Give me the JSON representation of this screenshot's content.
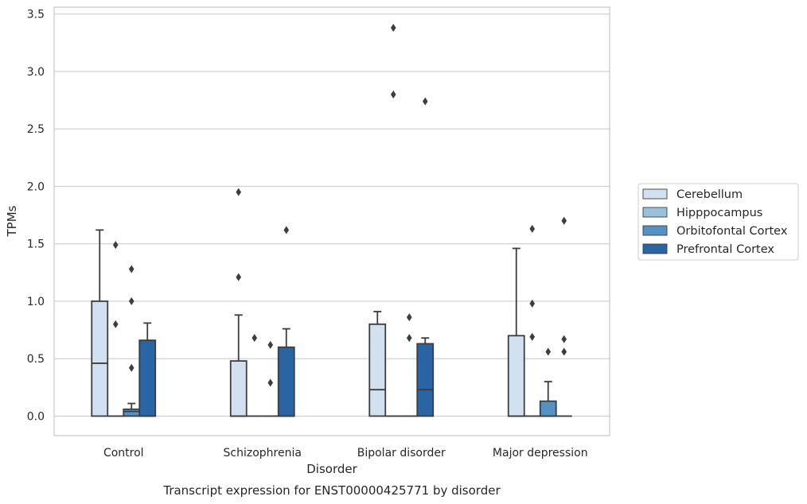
{
  "chart_data": {
    "type": "box",
    "caption": "Transcript expression for ENST00000425771 by disorder",
    "xlabel": "Disorder",
    "ylabel": "TPMs",
    "ylim": [
      -0.17,
      3.56
    ],
    "yticks": [
      "0.0",
      "0.5",
      "1.0",
      "1.5",
      "2.0",
      "2.5",
      "3.0",
      "3.5"
    ],
    "grid": "horizontal",
    "legend_position": "right",
    "categories": [
      "Control",
      "Schizophrenia",
      "Bipolar disorder",
      "Major depression"
    ],
    "series": [
      {
        "name": "Cerebellum",
        "color": "#d2e1f0",
        "boxes": [
          {
            "q1": 0.0,
            "median": 0.46,
            "q3": 1.0,
            "whisker_low": 0.0,
            "whisker_high": 1.62,
            "outliers": []
          },
          {
            "q1": 0.0,
            "median": 0.0,
            "q3": 0.48,
            "whisker_low": 0.0,
            "whisker_high": 0.88,
            "outliers": [
              1.21,
              1.95
            ]
          },
          {
            "q1": 0.0,
            "median": 0.23,
            "q3": 0.8,
            "whisker_low": 0.0,
            "whisker_high": 0.91,
            "outliers": []
          },
          {
            "q1": 0.0,
            "median": 0.0,
            "q3": 0.7,
            "whisker_low": 0.0,
            "whisker_high": 1.46,
            "outliers": []
          }
        ]
      },
      {
        "name": "Hipppocampus",
        "color": "#9ac1dc",
        "boxes": [
          {
            "q1": 0.0,
            "median": 0.0,
            "q3": 0.0,
            "whisker_low": 0.0,
            "whisker_high": 0.0,
            "outliers": [
              0.8,
              1.49
            ]
          },
          {
            "q1": 0.0,
            "median": 0.0,
            "q3": 0.0,
            "whisker_low": 0.0,
            "whisker_high": 0.0,
            "outliers": [
              0.68
            ]
          },
          {
            "q1": 0.0,
            "median": 0.0,
            "q3": 0.0,
            "whisker_low": 0.0,
            "whisker_high": 0.0,
            "outliers": [
              2.8,
              3.38
            ]
          },
          {
            "q1": 0.0,
            "median": 0.0,
            "q3": 0.0,
            "whisker_low": 0.0,
            "whisker_high": 0.0,
            "outliers": [
              0.69,
              0.98,
              1.63
            ]
          }
        ]
      },
      {
        "name": "Orbitofontal Cortex",
        "color": "#5592c1",
        "boxes": [
          {
            "q1": 0.0,
            "median": 0.04,
            "q3": 0.06,
            "whisker_low": 0.0,
            "whisker_high": 0.11,
            "outliers": [
              0.42,
              1.0,
              1.28
            ]
          },
          {
            "q1": 0.0,
            "median": 0.0,
            "q3": 0.0,
            "whisker_low": 0.0,
            "whisker_high": 0.0,
            "outliers": [
              0.29,
              0.62
            ]
          },
          {
            "q1": 0.0,
            "median": 0.0,
            "q3": 0.0,
            "whisker_low": 0.0,
            "whisker_high": 0.0,
            "outliers": [
              0.68,
              0.86
            ]
          },
          {
            "q1": 0.0,
            "median": 0.0,
            "q3": 0.13,
            "whisker_low": 0.0,
            "whisker_high": 0.3,
            "outliers": [
              0.56
            ]
          }
        ]
      },
      {
        "name": "Prefrontal Cortex",
        "color": "#2a64a2",
        "boxes": [
          {
            "q1": 0.0,
            "median": 0.0,
            "q3": 0.66,
            "whisker_low": 0.0,
            "whisker_high": 0.81,
            "outliers": []
          },
          {
            "q1": 0.0,
            "median": 0.0,
            "q3": 0.6,
            "whisker_low": 0.0,
            "whisker_high": 0.76,
            "outliers": [
              1.62
            ]
          },
          {
            "q1": 0.0,
            "median": 0.23,
            "q3": 0.63,
            "whisker_low": 0.0,
            "whisker_high": 0.68,
            "outliers": [
              2.74
            ]
          },
          {
            "q1": 0.0,
            "median": 0.0,
            "q3": 0.0,
            "whisker_low": 0.0,
            "whisker_high": 0.0,
            "outliers": [
              0.56,
              0.67,
              1.7
            ]
          }
        ]
      }
    ]
  }
}
